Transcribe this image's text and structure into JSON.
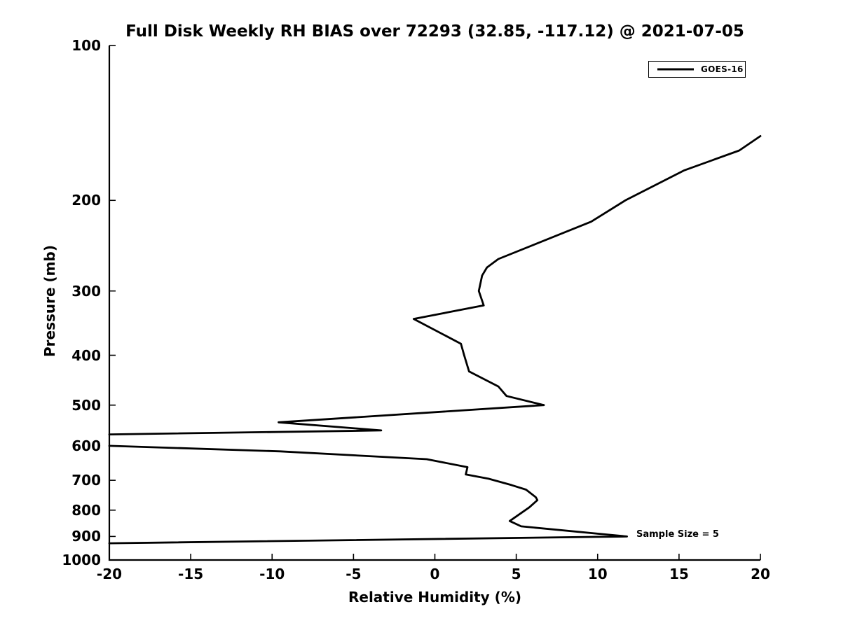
{
  "chart_data": {
    "type": "line",
    "title": "Full Disk Weekly RH BIAS over 72293 (32.85, -117.12) @ 2021-07-05",
    "xlabel": "Relative Humidity (%)",
    "ylabel": "Pressure (mb)",
    "xlim": [
      -20,
      20
    ],
    "ylim": [
      100,
      1000
    ],
    "x_ticks": [
      -20,
      -15,
      -10,
      -5,
      0,
      5,
      10,
      15,
      20
    ],
    "y_ticks": [
      100,
      200,
      300,
      400,
      500,
      600,
      700,
      800,
      900,
      1000
    ],
    "y_scale": "log10",
    "y_axis_inverted": true,
    "grid": false,
    "line_color": "#000000",
    "background_color": "#ffffff",
    "legend": {
      "entries": [
        "GOES-16"
      ],
      "position": "upper-right"
    },
    "annotation": {
      "text": "Sample Size = 5",
      "anchor_rh_pct": 12.4,
      "anchor_pressure_mb": 900
    },
    "series": [
      {
        "name": "GOES-16",
        "color": "#000000",
        "clip_note": "polyline clipped at x = -20 and x = 20 axis limits; points are [rh_bias_pct, pressure_mb]",
        "segments": [
          [
            [
              20.0,
              150
            ],
            [
              18.7,
              160
            ],
            [
              15.3,
              175
            ],
            [
              11.7,
              200
            ],
            [
              9.6,
              220
            ],
            [
              3.9,
              260
            ],
            [
              3.2,
              270
            ],
            [
              2.9,
              280
            ],
            [
              2.7,
              300
            ],
            [
              3.0,
              320
            ],
            [
              -1.3,
              340
            ],
            [
              1.6,
              380
            ],
            [
              1.8,
              400
            ],
            [
              2.1,
              430
            ],
            [
              3.9,
              460
            ],
            [
              4.4,
              480
            ],
            [
              6.7,
              500
            ],
            [
              -9.6,
              540
            ],
            [
              -3.3,
              560
            ],
            [
              -20.0,
              570
            ]
          ],
          [
            [
              -20.0,
              600
            ],
            [
              -9.5,
              615
            ],
            [
              -0.5,
              637
            ],
            [
              2.0,
              660
            ],
            [
              1.9,
              682
            ],
            [
              3.3,
              695
            ],
            [
              4.7,
              715
            ],
            [
              5.6,
              730
            ],
            [
              6.2,
              755
            ],
            [
              6.3,
              765
            ],
            [
              5.8,
              790
            ],
            [
              4.6,
              840
            ],
            [
              5.3,
              860
            ],
            [
              11.8,
              900
            ],
            [
              -20.0,
              928
            ]
          ]
        ]
      }
    ]
  }
}
